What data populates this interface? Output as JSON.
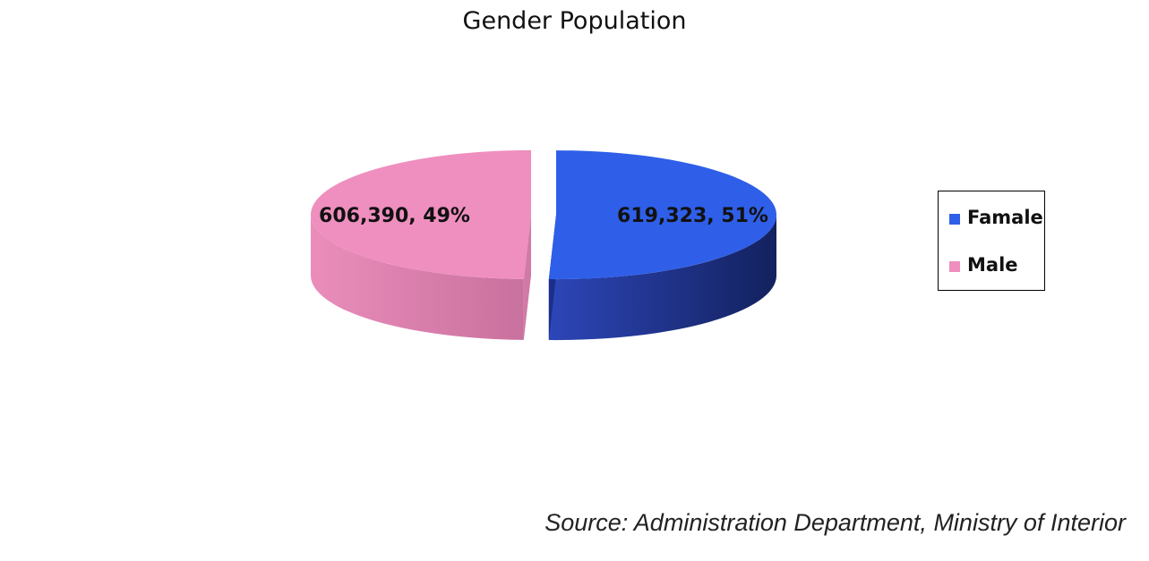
{
  "chart_data": {
    "type": "pie",
    "title": "Gender Population",
    "slices": [
      {
        "name": "Famale",
        "value": 619323,
        "percent": 51,
        "label": "619,323, 51%",
        "color": "#2f5fe8",
        "side_color": "#1b2f8a"
      },
      {
        "name": "Male",
        "value": 606390,
        "percent": 49,
        "label": "606,390, 49%",
        "color": "#ef8fbf",
        "side_color": "#d07aa6"
      }
    ],
    "legend": {
      "position": "right",
      "entries": [
        "Famale",
        "Male"
      ]
    },
    "style": "3d-exploded"
  },
  "source": "Source: Administration  Department, Ministry of Interior"
}
